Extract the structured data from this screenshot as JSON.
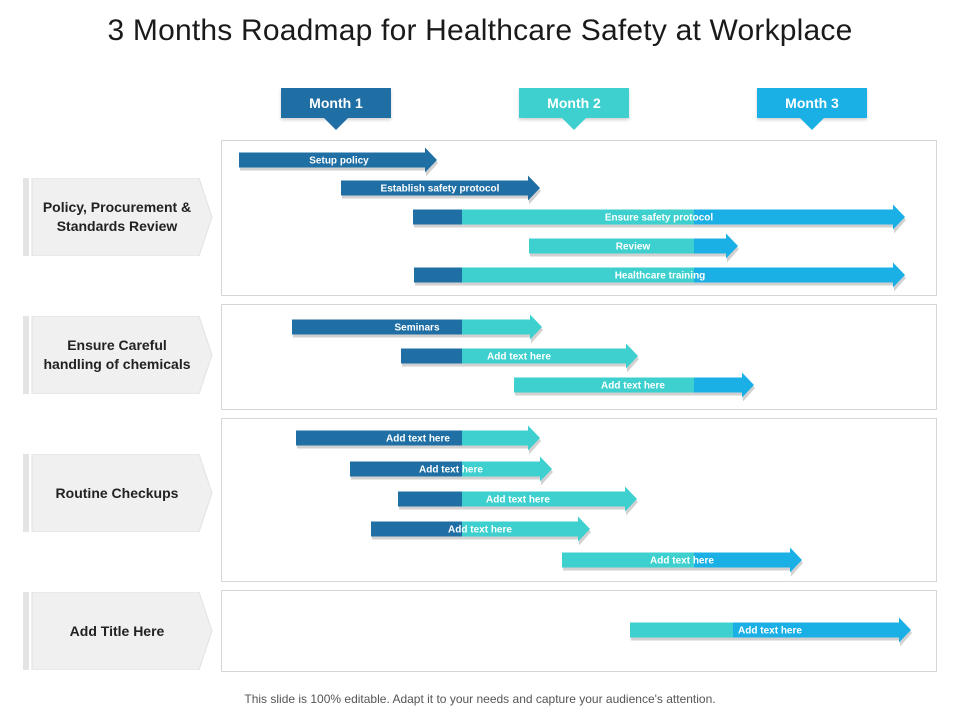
{
  "title": "3 Months Roadmap for Healthcare Safety at Workplace",
  "months": [
    {
      "label": "Month 1",
      "color": "#1f6fa5"
    },
    {
      "label": "Month 2",
      "color": "#3ecfcf"
    },
    {
      "label": "Month 3",
      "color": "#1ab0e6"
    }
  ],
  "colors": {
    "dark": "#1f6fa5",
    "teal": "#3ecfcf",
    "blue": "#1ab0e6"
  },
  "sections": [
    {
      "label": "Policy, Procurement & Standards Review",
      "tasks": [
        {
          "text": "Setup policy"
        },
        {
          "text": "Establish safety protocol"
        },
        {
          "text": "Ensure safety protocol"
        },
        {
          "text": "Review"
        },
        {
          "text": "Healthcare training"
        }
      ]
    },
    {
      "label": "Ensure Careful handling of chemicals",
      "tasks": [
        {
          "text": "Seminars"
        },
        {
          "text": "Add text here"
        },
        {
          "text": "Add text here"
        }
      ]
    },
    {
      "label": "Routine Checkups",
      "tasks": [
        {
          "text": "Add text here"
        },
        {
          "text": "Add text here"
        },
        {
          "text": "Add text here"
        },
        {
          "text": "Add text here"
        },
        {
          "text": "Add text here"
        }
      ]
    },
    {
      "label": "Add Title Here",
      "tasks": [
        {
          "text": "Add text here"
        }
      ]
    }
  ],
  "footer": "This slide is 100% editable. Adapt it to your needs and capture your audience's attention."
}
